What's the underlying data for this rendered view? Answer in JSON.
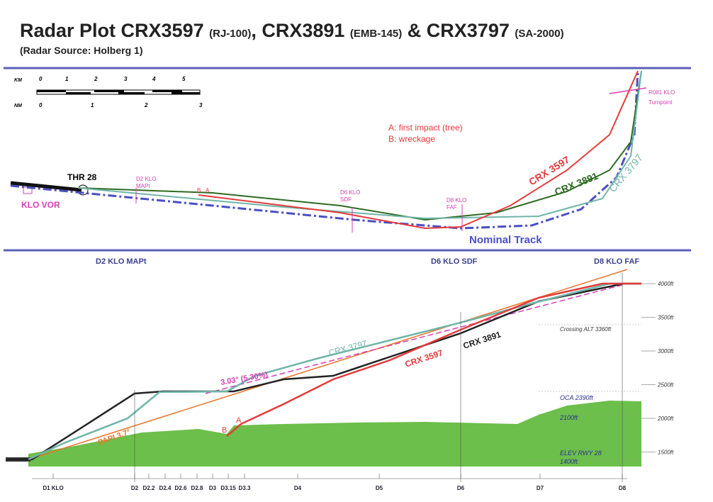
{
  "header": {
    "title": [
      "Radar Plot CRX3597",
      "(RJ-100)",
      ", CRX3891",
      "(EMB-145)",
      "& CRX3797",
      "(SA-2000)"
    ],
    "subtitle": "(Radar Source: Holberg 1)"
  },
  "plan": {
    "scale": {
      "km_label": "KM",
      "nm_label": "NM",
      "km": [
        "0",
        "1",
        "2",
        "3",
        "4",
        "5"
      ],
      "nm": [
        "0",
        "1",
        "2",
        "3"
      ]
    },
    "notes": [
      "A: first impact (tree)",
      "B: wreckage"
    ],
    "thr": "THR 28",
    "vor": "KLO VOR",
    "fixes": [
      [
        "D2 KLO",
        "MAPt"
      ],
      [
        "D6 KLO",
        "SDF"
      ],
      [
        "D8 KLO",
        "FAF"
      ]
    ],
    "turnpoint": [
      "R081 KLO",
      "Turnpoint"
    ],
    "a": "A",
    "b": "B",
    "nominal": "Nominal Track",
    "tracks": [
      "CRX 3597",
      "CRX 3891",
      "CRX 3797"
    ]
  },
  "profile": {
    "headers": [
      "D2 KLO MAPt",
      "D6 KLO SDF",
      "D8 KLO FAF"
    ],
    "yticks": [
      "4000ft",
      "3500ft",
      "3000ft",
      "2500ft",
      "2000ft",
      "1500ft"
    ],
    "xticks": [
      "D1 KLO",
      "D2",
      "D2.2",
      "D2.4",
      "D2.6",
      "D2.8",
      "D3",
      "D3.15",
      "D3.3",
      "D4",
      "D5",
      "D6",
      "D7",
      "D8"
    ],
    "annotations": [
      "Crossing ALT 3360ft",
      "OCA 2390ft",
      "2100ft",
      "ELEV RWY 28",
      "1400ft"
    ],
    "papi": "PAPI 3.7°",
    "glide": "3.03° (5.30%)",
    "tracks": [
      "CRX 3597",
      "CRX 3891",
      "CRX 3797"
    ],
    "a": "A",
    "b": "B"
  }
}
